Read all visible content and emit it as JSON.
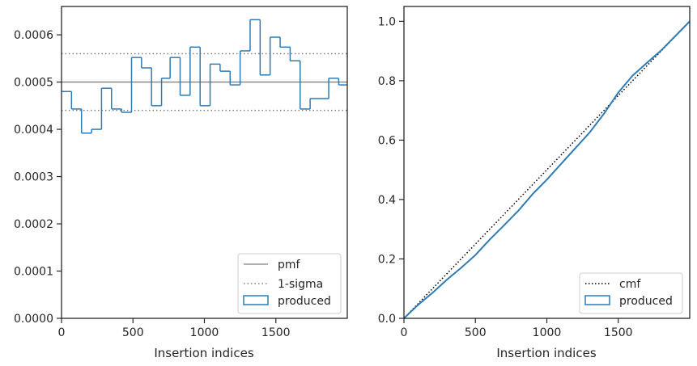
{
  "colors": {
    "steps": "#2f7bb5",
    "pmf": "#808080",
    "sigma": "#808080",
    "cmf": "#000000",
    "axes": "#262626"
  },
  "chart_data": [
    {
      "type": "histogram-step",
      "xlabel": "Insertion indices",
      "ylabel": "",
      "xlim": [
        0,
        2000
      ],
      "ylim": [
        0,
        0.00066
      ],
      "xticks": [
        0,
        500,
        1000,
        1500
      ],
      "yticks": [
        0,
        0.0001,
        0.0002,
        0.0003,
        0.0004,
        0.0005,
        0.0006
      ],
      "xtick_labels": [
        "0",
        "500",
        "1000",
        "1500"
      ],
      "ytick_labels": [
        "0.0000",
        "0.0001",
        "0.0002",
        "0.0003",
        "0.0004",
        "0.0005",
        "0.0006"
      ],
      "pmf": 0.0005,
      "sigma_band": [
        0.00044,
        0.00056
      ],
      "legend_position": "lower-right",
      "legend": [
        "pmf",
        "1-sigma",
        "produced"
      ],
      "bins": [
        {
          "x0": 0,
          "x1": 70,
          "y": 0.00048
        },
        {
          "x0": 70,
          "x1": 140,
          "y": 0.000443
        },
        {
          "x0": 140,
          "x1": 210,
          "y": 0.000392
        },
        {
          "x0": 210,
          "x1": 280,
          "y": 0.0004
        },
        {
          "x0": 280,
          "x1": 350,
          "y": 0.000487
        },
        {
          "x0": 350,
          "x1": 420,
          "y": 0.000443
        },
        {
          "x0": 420,
          "x1": 490,
          "y": 0.000436
        },
        {
          "x0": 490,
          "x1": 560,
          "y": 0.000552
        },
        {
          "x0": 560,
          "x1": 630,
          "y": 0.00053
        },
        {
          "x0": 630,
          "x1": 700,
          "y": 0.00045
        },
        {
          "x0": 700,
          "x1": 760,
          "y": 0.000508
        },
        {
          "x0": 760,
          "x1": 830,
          "y": 0.000552
        },
        {
          "x0": 830,
          "x1": 900,
          "y": 0.000472
        },
        {
          "x0": 900,
          "x1": 970,
          "y": 0.000574
        },
        {
          "x0": 970,
          "x1": 1040,
          "y": 0.00045
        },
        {
          "x0": 1040,
          "x1": 1110,
          "y": 0.000538
        },
        {
          "x0": 1110,
          "x1": 1180,
          "y": 0.000523
        },
        {
          "x0": 1180,
          "x1": 1250,
          "y": 0.000494
        },
        {
          "x0": 1250,
          "x1": 1320,
          "y": 0.000566
        },
        {
          "x0": 1320,
          "x1": 1390,
          "y": 0.000632
        },
        {
          "x0": 1390,
          "x1": 1460,
          "y": 0.000515
        },
        {
          "x0": 1460,
          "x1": 1530,
          "y": 0.000595
        },
        {
          "x0": 1530,
          "x1": 1600,
          "y": 0.000574
        },
        {
          "x0": 1600,
          "x1": 1670,
          "y": 0.000545
        },
        {
          "x0": 1670,
          "x1": 1740,
          "y": 0.000443
        },
        {
          "x0": 1740,
          "x1": 1870,
          "y": 0.000465
        },
        {
          "x0": 1870,
          "x1": 1940,
          "y": 0.000508
        },
        {
          "x0": 1940,
          "x1": 2000,
          "y": 0.000494
        }
      ]
    },
    {
      "type": "line",
      "xlabel": "Insertion indices",
      "ylabel": "",
      "xlim": [
        0,
        2000
      ],
      "ylim": [
        0,
        1.05
      ],
      "xticks": [
        0,
        500,
        1000,
        1500
      ],
      "yticks": [
        0.0,
        0.2,
        0.4,
        0.6,
        0.8,
        1.0
      ],
      "xtick_labels": [
        "0",
        "500",
        "1000",
        "1500"
      ],
      "ytick_labels": [
        "0.0",
        "0.2",
        "0.4",
        "0.6",
        "0.8",
        "1.0"
      ],
      "legend_position": "lower-right",
      "legend": [
        "cmf",
        "produced"
      ],
      "cmf": {
        "x": [
          0,
          2000
        ],
        "y": [
          0.0,
          1.0
        ]
      },
      "produced": {
        "x": [
          0,
          100,
          200,
          300,
          400,
          500,
          600,
          700,
          800,
          900,
          1000,
          1100,
          1200,
          1300,
          1400,
          1500,
          1600,
          1700,
          1800,
          1900,
          2000
        ],
        "y": [
          0.0,
          0.046,
          0.086,
          0.13,
          0.17,
          0.213,
          0.265,
          0.313,
          0.362,
          0.418,
          0.467,
          0.52,
          0.573,
          0.626,
          0.689,
          0.76,
          0.817,
          0.86,
          0.902,
          0.951,
          1.0
        ]
      }
    }
  ]
}
